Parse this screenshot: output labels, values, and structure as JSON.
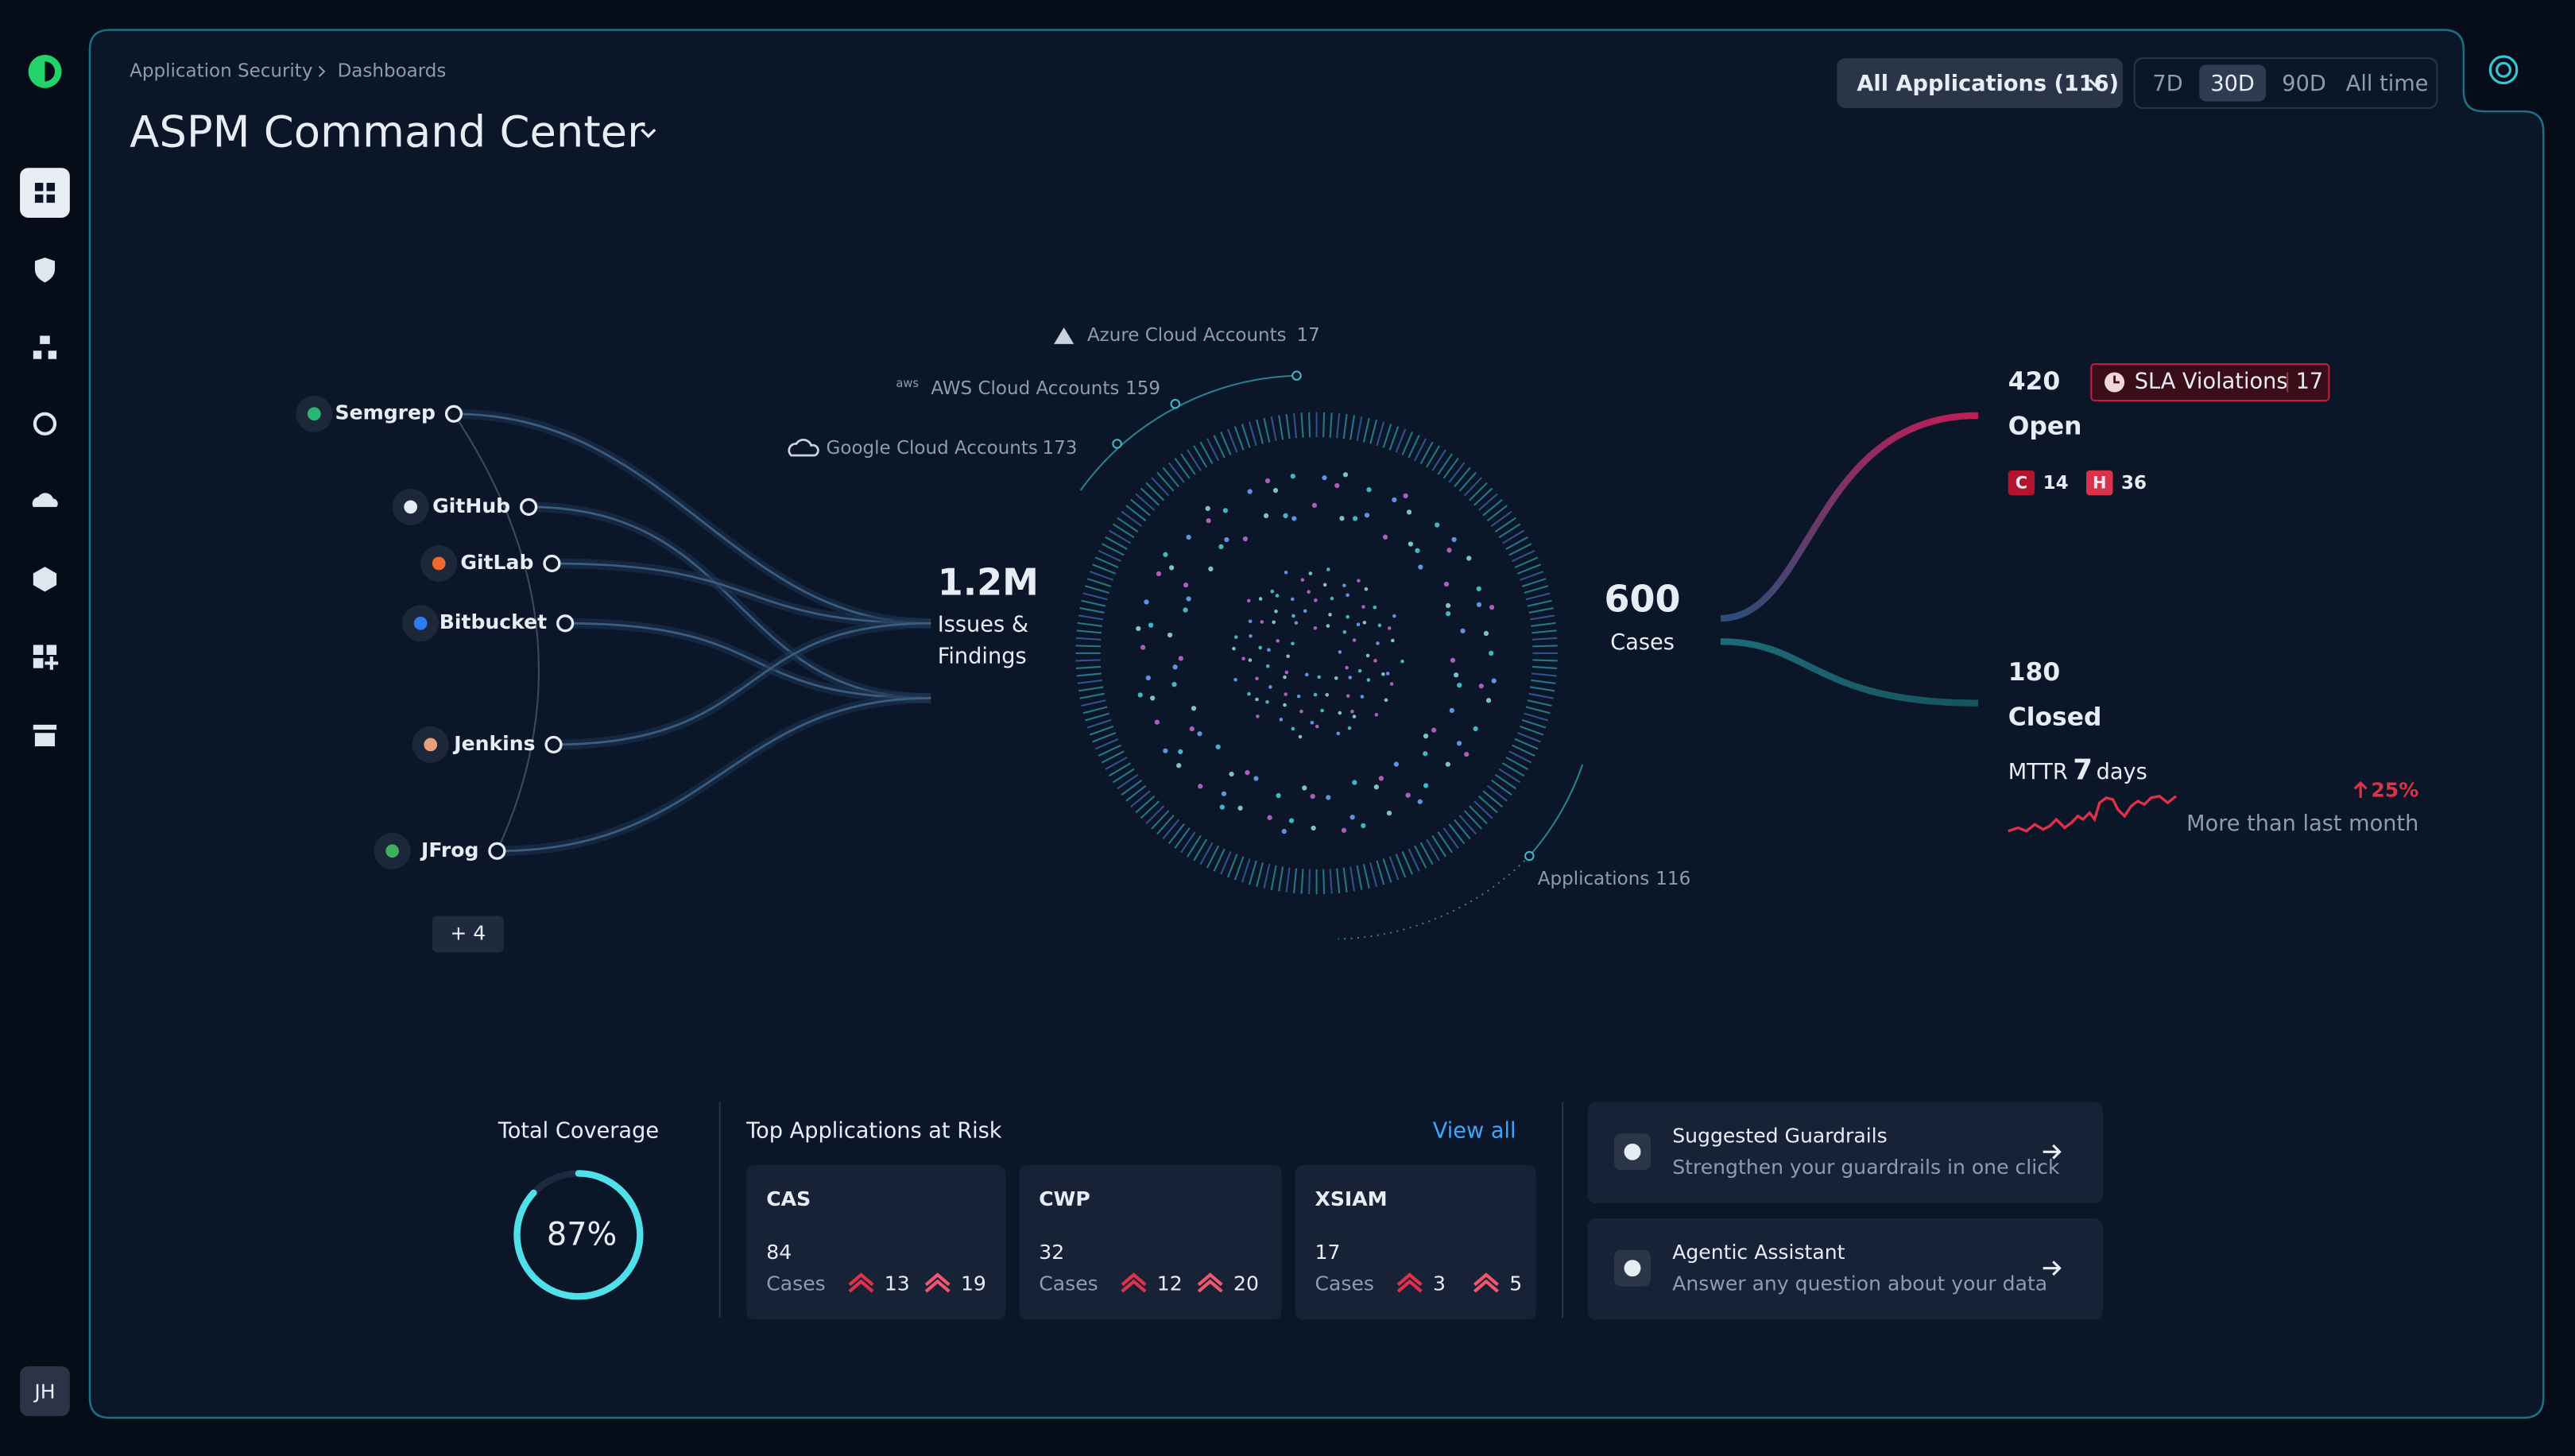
{
  "breadcrumb": [
    "Application Security",
    "Dashboards"
  ],
  "header": {
    "title": "ASPM Command Center"
  },
  "filters": {
    "app_selector": "All Applications (116)",
    "ranges": [
      "7D",
      "30D",
      "90D",
      "All time"
    ]
  },
  "user": {
    "initials": "JH"
  },
  "sources": {
    "items": [
      "Semgrep",
      "GitHub",
      "GitLab",
      "Bitbucket",
      "Jenkins",
      "JFrog"
    ],
    "more": "+ 4"
  },
  "clouds": [
    {
      "label": "Azure Cloud Accounts",
      "count": 17
    },
    {
      "label": "AWS Cloud Accounts",
      "count": 159
    },
    {
      "label": "Google Cloud Accounts",
      "count": 173
    }
  ],
  "issues": {
    "value": "1.2M",
    "label": "Issues & Findings"
  },
  "cases": {
    "value": 600,
    "label": "Cases"
  },
  "applications": {
    "label": "Applications",
    "count": 116
  },
  "open": {
    "count": 420,
    "label": "Open",
    "sla_label": "SLA Violations",
    "sla_count": 17,
    "critical": {
      "label": "C",
      "count": 14
    },
    "high": {
      "label": "H",
      "count": 36
    }
  },
  "closed": {
    "count": 180,
    "label": "Closed",
    "mttr_label": "MTTR",
    "mttr_value": 7,
    "mttr_unit": "days",
    "change": "25%",
    "change_label": "More than last month"
  },
  "coverage": {
    "title": "Total Coverage",
    "value": 87,
    "label": "87%"
  },
  "top_apps": {
    "title": "Top Applications at Risk",
    "view_all": "View all",
    "cases_label": "Cases",
    "apps": [
      {
        "name": "CAS",
        "cases": 84,
        "critical": 13,
        "high": 19
      },
      {
        "name": "CWP",
        "cases": 32,
        "critical": 12,
        "high": 20
      },
      {
        "name": "XSIAM",
        "cases": 17,
        "critical": 3,
        "high": 5
      }
    ]
  },
  "actions": [
    {
      "title": "Suggested Guardrails",
      "subtitle": "Strengthen your guardrails in one click"
    },
    {
      "title": "Agentic Assistant",
      "subtitle": "Answer any question about your data"
    }
  ]
}
